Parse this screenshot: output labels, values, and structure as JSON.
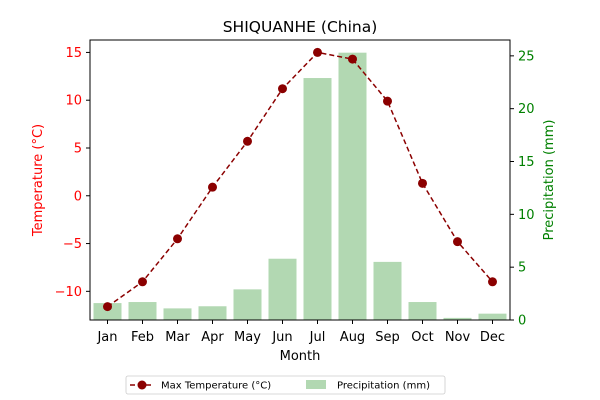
{
  "chart_data": {
    "type": "bar",
    "title": "SHIQUANHE (China)",
    "xlabel": "Month",
    "categories": [
      "Jan",
      "Feb",
      "Mar",
      "Apr",
      "May",
      "Jun",
      "Jul",
      "Aug",
      "Sep",
      "Oct",
      "Nov",
      "Dec"
    ],
    "series": [
      {
        "name": "Max Temperature (°C)",
        "type": "line",
        "axis": "left",
        "color": "#8b0000",
        "values": [
          -11.6,
          -9.0,
          -4.5,
          0.9,
          5.7,
          11.2,
          15.0,
          14.3,
          9.9,
          1.3,
          -4.8,
          -9.0
        ]
      },
      {
        "name": "Precipitation (mm)",
        "type": "bar",
        "axis": "right",
        "color": "#b2d8b2",
        "values": [
          1.6,
          1.7,
          1.1,
          1.3,
          2.9,
          5.8,
          22.9,
          25.3,
          5.5,
          1.7,
          0.2,
          0.6
        ]
      }
    ],
    "y_left": {
      "label": "Temperature (°C)",
      "color": "#ff0000",
      "ylim": [
        -13,
        16.3
      ],
      "ticks": [
        -10,
        -5,
        0,
        5,
        10,
        15
      ],
      "tick_labels": [
        "−10",
        "−5",
        "0",
        "5",
        "10",
        "15"
      ]
    },
    "y_right": {
      "label": "Precipitation (mm)",
      "color": "#008000",
      "ylim": [
        0,
        26.5
      ],
      "ticks": [
        0,
        5,
        10,
        15,
        20,
        25
      ],
      "tick_labels": [
        "0",
        "5",
        "10",
        "15",
        "20",
        "25"
      ]
    },
    "grid": false,
    "legend_position": "bottom-center"
  }
}
